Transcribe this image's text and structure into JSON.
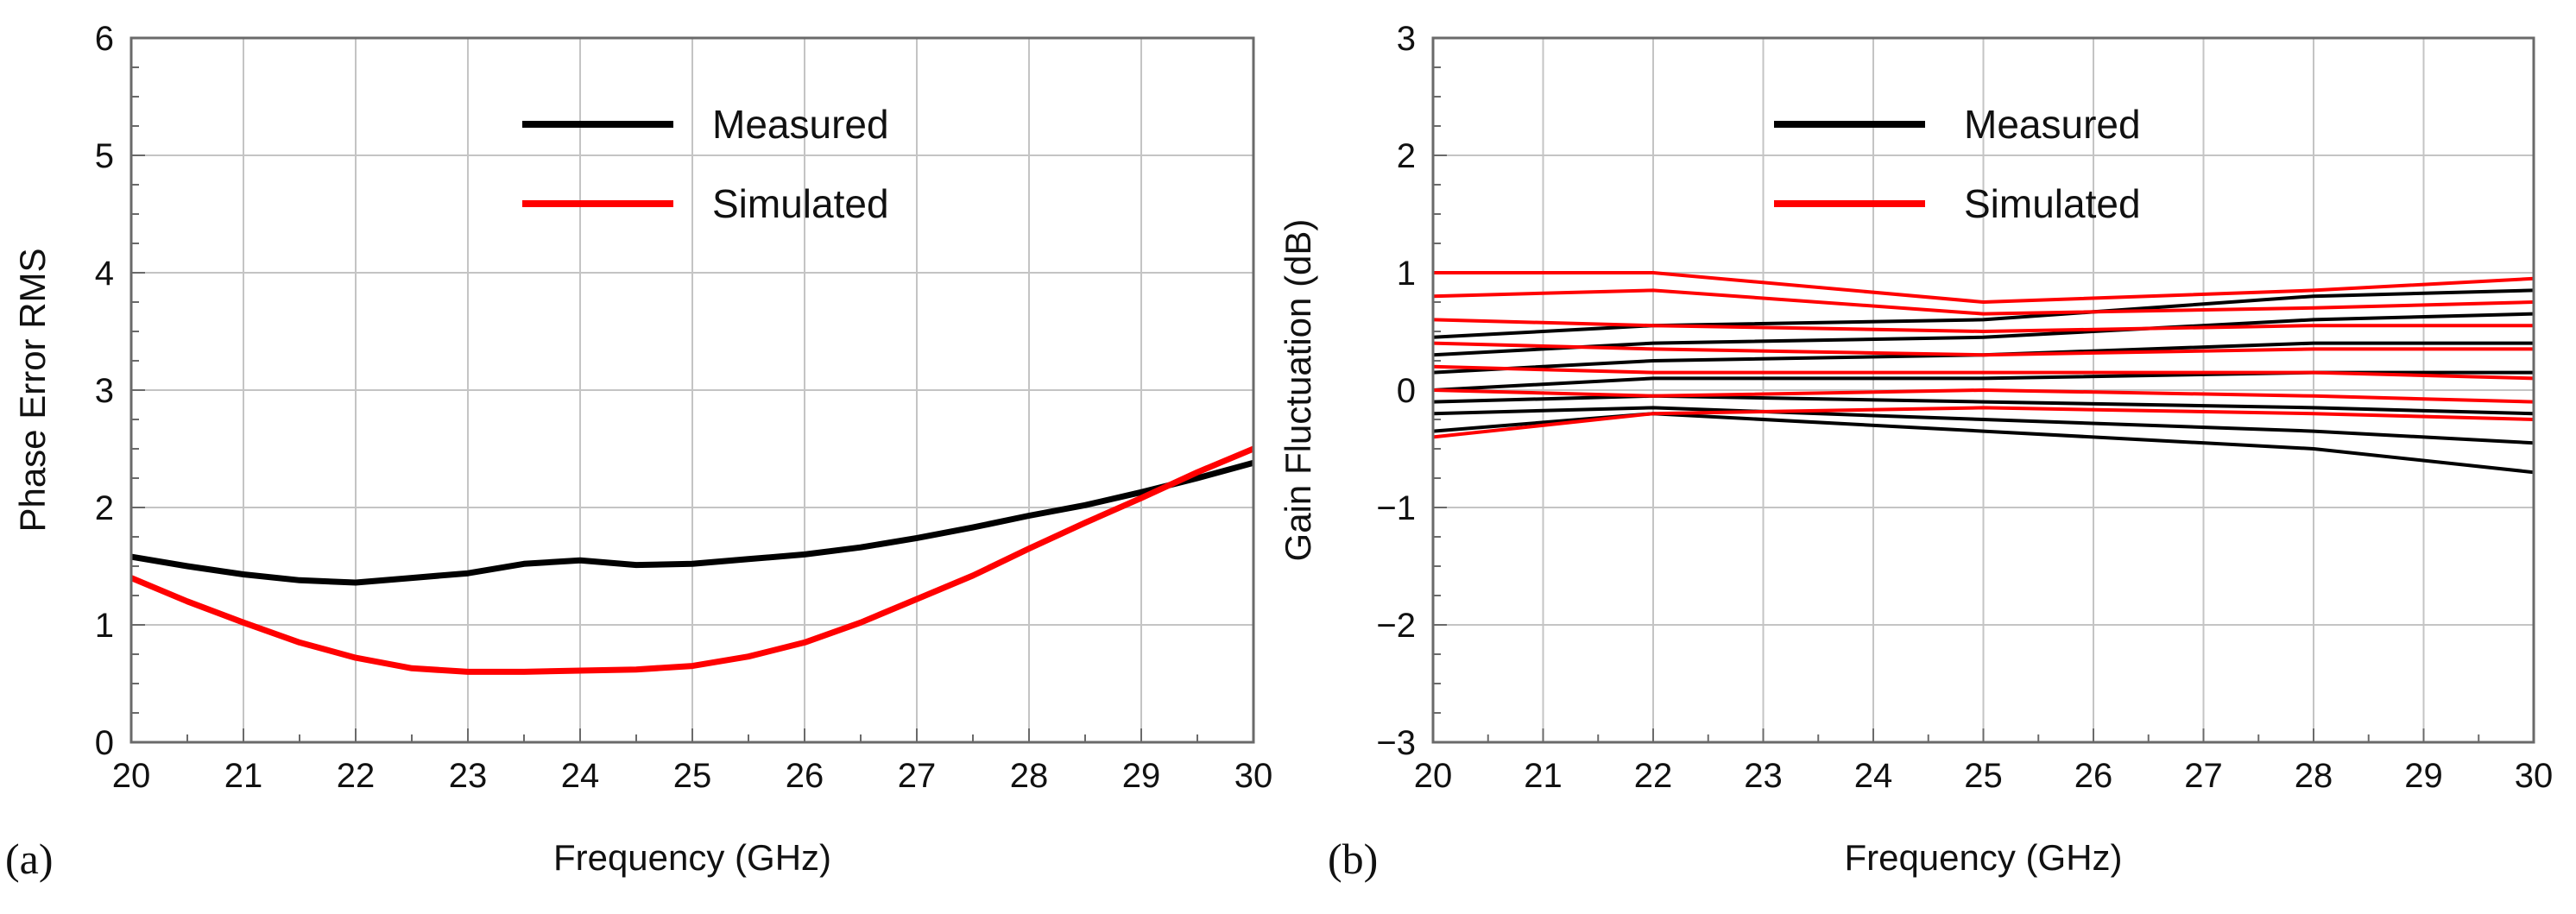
{
  "chart_data": [
    {
      "type": "line",
      "panel_label": "(a)",
      "title": "",
      "xlabel": "Frequency (GHz)",
      "ylabel": "Phase Error RMS",
      "xlim": [
        20,
        30
      ],
      "ylim": [
        0,
        6
      ],
      "xticks": [
        "20",
        "21",
        "22",
        "23",
        "24",
        "25",
        "26",
        "27",
        "28",
        "29",
        "30"
      ],
      "yticks": [
        "0",
        "1",
        "2",
        "3",
        "4",
        "5",
        "6"
      ],
      "grid": true,
      "legend_position": "top-center",
      "x": [
        20,
        20.5,
        21,
        21.5,
        22,
        22.5,
        23,
        23.5,
        24,
        24.5,
        25,
        25.5,
        26,
        26.5,
        27,
        27.5,
        28,
        28.5,
        29,
        29.5,
        30
      ],
      "series": [
        {
          "name": "Measured",
          "color": "#000000",
          "values": [
            1.58,
            1.5,
            1.43,
            1.38,
            1.36,
            1.4,
            1.44,
            1.52,
            1.55,
            1.51,
            1.52,
            1.56,
            1.6,
            1.66,
            1.74,
            1.83,
            1.93,
            2.02,
            2.13,
            2.25,
            2.38
          ]
        },
        {
          "name": "Simulated",
          "color": "#ff0000",
          "values": [
            1.4,
            1.2,
            1.02,
            0.85,
            0.72,
            0.63,
            0.6,
            0.6,
            0.61,
            0.62,
            0.65,
            0.73,
            0.85,
            1.02,
            1.22,
            1.42,
            1.65,
            1.87,
            2.08,
            2.3,
            2.5
          ]
        }
      ]
    },
    {
      "type": "line",
      "panel_label": "(b)",
      "title": "",
      "xlabel": "Frequency (GHz)",
      "ylabel": "Gain Fluctuation (dB)",
      "xlim": [
        20,
        30
      ],
      "ylim": [
        -3,
        3
      ],
      "xticks": [
        "20",
        "21",
        "22",
        "23",
        "24",
        "25",
        "26",
        "27",
        "28",
        "29",
        "30"
      ],
      "yticks": [
        "−3",
        "−2",
        "−1",
        "0",
        "1",
        "2",
        "3"
      ],
      "grid": true,
      "legend_position": "top-center",
      "x": [
        20,
        22,
        25,
        28,
        30
      ],
      "series": [
        {
          "name": "Measured",
          "color": "#000000",
          "values": [
            0.45,
            0.55,
            0.6,
            0.8,
            0.85
          ]
        },
        {
          "name": "Measured",
          "color": "#000000",
          "values": [
            0.3,
            0.4,
            0.45,
            0.6,
            0.65
          ]
        },
        {
          "name": "Measured",
          "color": "#000000",
          "values": [
            0.15,
            0.25,
            0.3,
            0.4,
            0.4
          ]
        },
        {
          "name": "Measured",
          "color": "#000000",
          "values": [
            0.0,
            0.1,
            0.1,
            0.15,
            0.15
          ]
        },
        {
          "name": "Measured",
          "color": "#000000",
          "values": [
            -0.1,
            -0.05,
            -0.1,
            -0.15,
            -0.2
          ]
        },
        {
          "name": "Measured",
          "color": "#000000",
          "values": [
            -0.2,
            -0.15,
            -0.25,
            -0.35,
            -0.45
          ]
        },
        {
          "name": "Measured",
          "color": "#000000",
          "values": [
            -0.35,
            -0.2,
            -0.35,
            -0.5,
            -0.7
          ]
        },
        {
          "name": "Simulated",
          "color": "#ff0000",
          "values": [
            1.0,
            1.0,
            0.75,
            0.85,
            0.95
          ]
        },
        {
          "name": "Simulated",
          "color": "#ff0000",
          "values": [
            0.8,
            0.85,
            0.65,
            0.7,
            0.75
          ]
        },
        {
          "name": "Simulated",
          "color": "#ff0000",
          "values": [
            0.6,
            0.55,
            0.5,
            0.55,
            0.55
          ]
        },
        {
          "name": "Simulated",
          "color": "#ff0000",
          "values": [
            0.4,
            0.35,
            0.3,
            0.35,
            0.35
          ]
        },
        {
          "name": "Simulated",
          "color": "#ff0000",
          "values": [
            0.2,
            0.15,
            0.15,
            0.15,
            0.1
          ]
        },
        {
          "name": "Simulated",
          "color": "#ff0000",
          "values": [
            0.0,
            -0.05,
            0.0,
            -0.05,
            -0.1
          ]
        },
        {
          "name": "Simulated",
          "color": "#ff0000",
          "values": [
            -0.4,
            -0.2,
            -0.15,
            -0.2,
            -0.25
          ]
        }
      ]
    }
  ]
}
